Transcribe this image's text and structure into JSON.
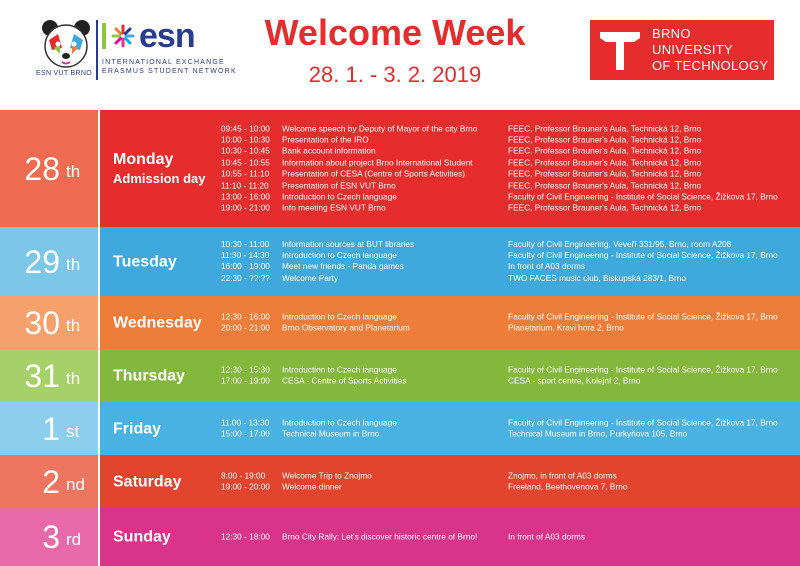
{
  "header": {
    "title": "Welcome Week",
    "dates": "28. 1. - 3. 2. 2019",
    "esn": {
      "section": "ESN VUT BRNO",
      "wordmark": "esn",
      "tagline_1": "INTERNATIONAL EXCHANGE",
      "tagline_2": "ERASMUS STUDENT NETWORK"
    },
    "but": {
      "line_1": "BRNO",
      "line_2": "UNIVERSITY",
      "line_3": "OF TECHNOLOGY"
    }
  },
  "days": [
    {
      "num": "28",
      "suffix": "th",
      "name": "Monday",
      "sub": "Admission day",
      "colors": {
        "left": "#ef6c52",
        "right": "#e52d2d"
      },
      "events": [
        {
          "time": "09:45 - 10:00",
          "desc": "Welcome speech by Deputy of Mayor of the city Brno",
          "place": "FEEC, Professor Brauner's Aula, Technická 12, Brno"
        },
        {
          "time": "10:00 - 10:30",
          "desc": "Presentation of the IRO",
          "place": "FEEC, Professor Brauner's Aula, Technická 12, Brno"
        },
        {
          "time": "10:30 - 10:45",
          "desc": "Bank account information",
          "place": "FEEC, Professor Brauner's Aula, Technická 12, Brno"
        },
        {
          "time": "10:45 - 10:55",
          "desc": "Information about project Brno International Student",
          "place": "FEEC, Professor Brauner's Aula, Technická 12, Brno"
        },
        {
          "time": "10:55 - 11:10",
          "desc": "Presentation of CESA (Centre of Sports Activities)",
          "place": "FEEC, Professor Brauner's Aula, Technická 12, Brno"
        },
        {
          "time": "11:10 - 11:20",
          "desc": "Presentation of ESN VUT Brno",
          "place": "FEEC, Professor Brauner's Aula, Technická 12, Brno"
        },
        {
          "time": "13:00 - 16:00",
          "desc": "Introduction to Czech language",
          "place": "Faculty of Civil Engineering - Institute of Social Science, Žižkova 17, Brno"
        },
        {
          "time": "19:00 - 21:00",
          "desc": "Info meeting ESN VUT Brno",
          "place": "FEEC, Professor Brauner's Aula, Technická 12, Brno"
        }
      ]
    },
    {
      "num": "29",
      "suffix": "th",
      "name": "Tuesday",
      "sub": "",
      "colors": {
        "left": "#7cc6ea",
        "right": "#3fa9de"
      },
      "events": [
        {
          "time": "10:30 - 11:00",
          "desc": "Information sources at BUT libraries",
          "place": "Faculty of Civil Engineering, Veveří 331/95, Brno, room A208"
        },
        {
          "time": "11:30 - 14:30",
          "desc": "Introduction to Czech language",
          "place": "Faculty of Civil Engineering - Institute of Social Science, Žižkova 17, Brno"
        },
        {
          "time": "16:00 - 19:00",
          "desc": "Meet new friends - Panda games",
          "place": "In front of A03 dorms"
        },
        {
          "time": "22:30 - ??:??",
          "desc": "Welcome Party",
          "place": "TWO FACES music club, Biskupská 283/1, Brno"
        }
      ]
    },
    {
      "num": "30",
      "suffix": "th",
      "name": "Wednesday",
      "sub": "",
      "colors": {
        "left": "#f5a06d",
        "right": "#ee7d3a"
      },
      "events": [
        {
          "time": "12:30 - 16:00",
          "desc": "Introduction to Czech language",
          "place": "Faculty of Civil Engineering - Institute of Social Science, Žižkova 17, Brno"
        },
        {
          "time": "20:00 - 21:00",
          "desc": "Brno Observatory and Planetarium",
          "place": "Planetarium, Kravi hora 2, Brno"
        }
      ]
    },
    {
      "num": "31",
      "suffix": "th",
      "name": "Thursday",
      "sub": "",
      "colors": {
        "left": "#a6d06a",
        "right": "#83b83c"
      },
      "events": [
        {
          "time": "12:30 - 15:30",
          "desc": "Introduction to Czech language",
          "place": "Faculty of Civil Engineering - Institute of Social Science, Žižkova 17, Brno"
        },
        {
          "time": "17:00 - 19:00",
          "desc": "CESA - Centre of Sports Activities",
          "place": "CESA - sport centre, Kolejní 2, Brno"
        }
      ]
    },
    {
      "num": "1",
      "suffix": "st",
      "name": "Friday",
      "sub": "",
      "colors": {
        "left": "#8dcdee",
        "right": "#4ab1e3"
      },
      "events": [
        {
          "time": "11:00 - 13:30",
          "desc": "Introduction to Czech language",
          "place": "Faculty of Civil Engineering - Institute of Social Science, Žižkova 17, Brno"
        },
        {
          "time": "15:00 - 17:00",
          "desc": "Technical Museum in Brno",
          "place": "Technical Museum in Brno, Purkyňova 105, Brno"
        }
      ]
    },
    {
      "num": "2",
      "suffix": "nd",
      "name": "Saturday",
      "sub": "",
      "colors": {
        "left": "#ee7660",
        "right": "#e2442e"
      },
      "events": [
        {
          "time": "8:00 - 19:00",
          "desc": "Welcome Trip to Znojmo",
          "place": "Znojmo, in front of A03 dorms"
        },
        {
          "time": "19:00 - 20:00",
          "desc": "Welcome dinner",
          "place": "Freeland, Beethovenova 7, Brno"
        }
      ]
    },
    {
      "num": "3",
      "suffix": "rd",
      "name": "Sunday",
      "sub": "",
      "colors": {
        "left": "#e86aaa",
        "right": "#d9338a"
      },
      "events": [
        {
          "time": "12:30 - 18:00",
          "desc": "Brno City Rally: Let's discover historic centre of Brno!",
          "place": "In front of A03 dorms"
        }
      ]
    }
  ]
}
